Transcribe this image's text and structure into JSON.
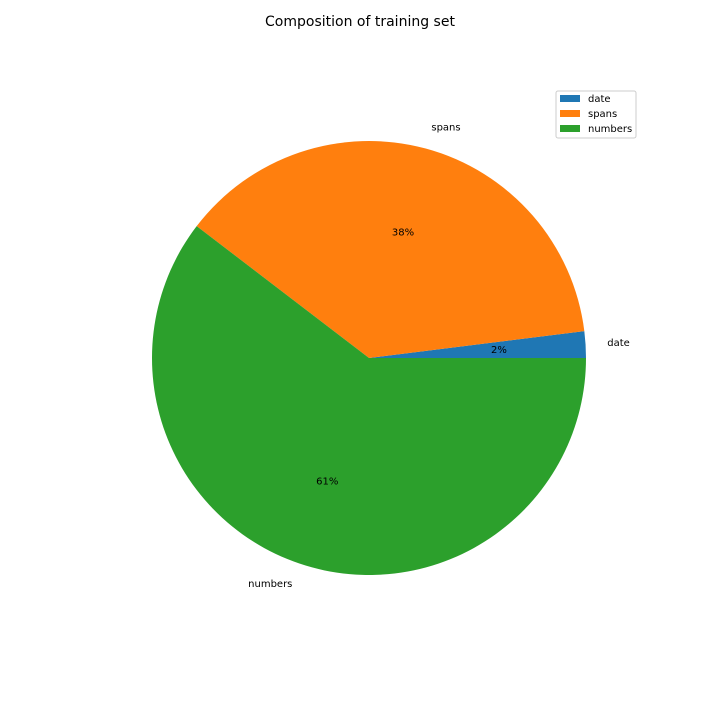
{
  "chart_data": {
    "type": "pie",
    "title": "Composition of training set",
    "categories": [
      "date",
      "spans",
      "numbers"
    ],
    "values": [
      2,
      38,
      61
    ],
    "percent_labels": [
      "2%",
      "38%",
      "61%"
    ],
    "colors": [
      "#1f77b4",
      "#ff7f0e",
      "#2ca02c"
    ],
    "start_angle_deg": 0,
    "direction": "counterclockwise",
    "legend": {
      "placement": "top-right",
      "entries": [
        "date",
        "spans",
        "numbers"
      ]
    }
  }
}
